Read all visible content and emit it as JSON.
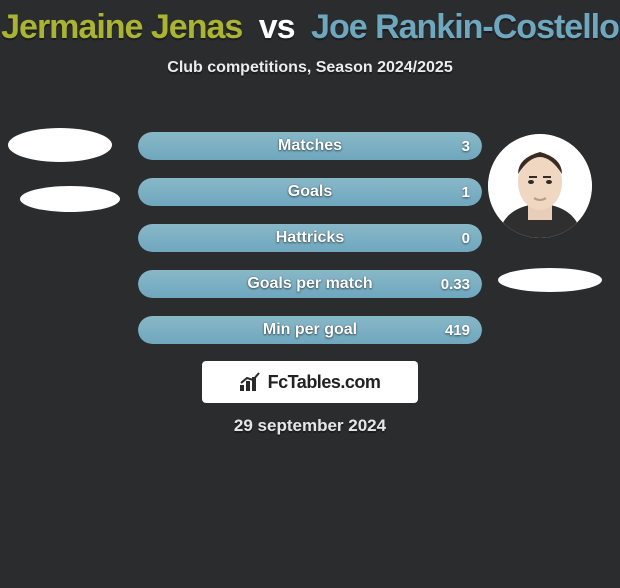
{
  "colors": {
    "background": "#2a2c2e",
    "p1": "#aab432",
    "p2": "#6fa7bf",
    "bar_p1_top": "#b8bd3a",
    "bar_p1_bot": "#9fa631",
    "bar_p2_top": "#88b8c7",
    "bar_p2_bot": "#6fa7bf",
    "text": "#ffffff"
  },
  "title": {
    "p1": "Jermaine Jenas",
    "vs": "vs",
    "p2": "Joe Rankin-Costello",
    "fontsize": 34
  },
  "subtitle": "Club competitions, Season 2024/2025",
  "bars": [
    {
      "label": "Matches",
      "left_val": "",
      "right_val": "3",
      "left_pct": 0,
      "right_pct": 100
    },
    {
      "label": "Goals",
      "left_val": "",
      "right_val": "1",
      "left_pct": 0,
      "right_pct": 100
    },
    {
      "label": "Hattricks",
      "left_val": "",
      "right_val": "0",
      "left_pct": 0,
      "right_pct": 100
    },
    {
      "label": "Goals per match",
      "left_val": "",
      "right_val": "0.33",
      "left_pct": 0,
      "right_pct": 100
    },
    {
      "label": "Min per goal",
      "left_val": "",
      "right_val": "419",
      "left_pct": 0,
      "right_pct": 100
    }
  ],
  "footer": {
    "brand": "FcTables.com",
    "date": "29 september 2024"
  }
}
